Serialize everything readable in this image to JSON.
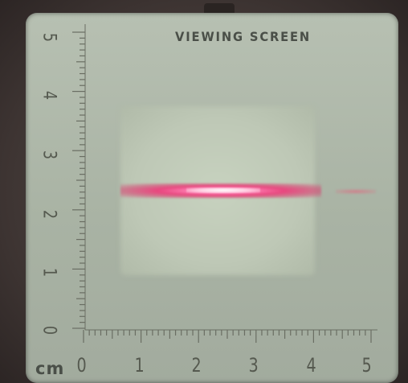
{
  "screen": {
    "title": "VIEWING SCREEN",
    "unit": "cm",
    "horizontal_scale": [
      "0",
      "1",
      "2",
      "3",
      "4",
      "5"
    ],
    "vertical_scale": [
      "5",
      "4",
      "3",
      "2",
      "1",
      "0"
    ]
  },
  "colors": {
    "board": "#b3bcad",
    "laser": "#e8467e",
    "background": "#3d3432"
  }
}
